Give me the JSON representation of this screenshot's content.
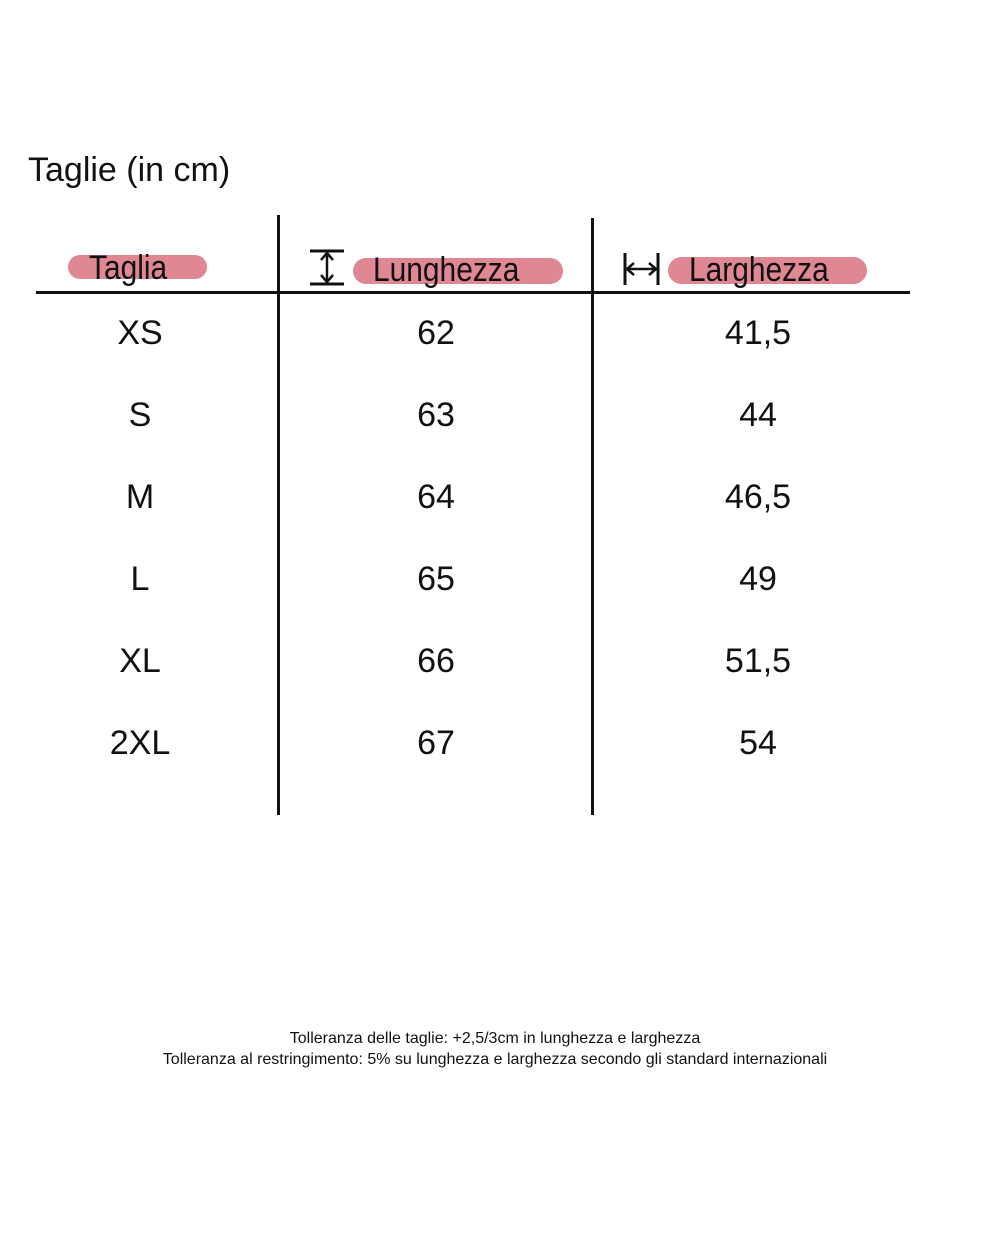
{
  "title": "Taglie (in cm)",
  "header_color": "#df8793",
  "columns": [
    {
      "label": "Taglia",
      "icon": null
    },
    {
      "label": "Lunghezza",
      "icon": "vertical-length-arrow-icon"
    },
    {
      "label": "Larghezza",
      "icon": "horizontal-width-arrow-icon"
    }
  ],
  "rows": [
    [
      "XS",
      "62",
      "41,5"
    ],
    [
      "S",
      "63",
      "44"
    ],
    [
      "M",
      "64",
      "46,5"
    ],
    [
      "L",
      "65",
      "49"
    ],
    [
      "XL",
      "66",
      "51,5"
    ],
    [
      "2XL",
      "67",
      "54"
    ]
  ],
  "footer": {
    "line1": "Tolleranza delle taglie: +2,5/3cm in lunghezza e larghezza",
    "line2": "Tolleranza al restringimento: 5% su lunghezza e larghezza secondo gli standard internazionali"
  }
}
